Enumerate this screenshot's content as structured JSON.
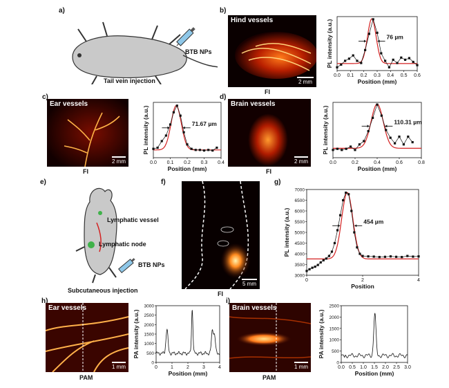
{
  "panels": {
    "a": {
      "label": "a)",
      "caption": "Tail vein injection",
      "agent": "BTB NPs"
    },
    "b": {
      "label": "b)",
      "image_title": "Hind vessels",
      "scale": "2 mm",
      "image_caption": "FI"
    },
    "c": {
      "label": "c)",
      "image_title": "Ear vessels",
      "scale": "2 mm",
      "image_caption": "FI"
    },
    "d": {
      "label": "d)",
      "image_title": "Brain vessels",
      "scale": "2 mm",
      "image_caption": "FI"
    },
    "e": {
      "label": "e)",
      "vessel": "Lymphatic vessel",
      "node": "Lymphatic node",
      "agent": "BTB NPs",
      "caption": "Subcutaneous injection"
    },
    "f": {
      "label": "f)",
      "scale": "5 mm",
      "image_caption": "FI"
    },
    "g": {
      "label": "g)"
    },
    "h": {
      "label": "h)",
      "image_title": "Ear vessels",
      "scale": "1 mm",
      "image_caption": "PAM"
    },
    "i": {
      "label": "i)",
      "image_title": "Brain vessels",
      "scale": "1 mm",
      "image_caption": "PAM"
    }
  },
  "colors": {
    "fit": "#d42020",
    "data": "#111111",
    "image_glow": "#ff8a1e"
  },
  "chart_data": [
    {
      "id": "b",
      "type": "scatter",
      "xlabel": "Position (mm)",
      "ylabel": "PL intensity (a.u.)",
      "xlim": [
        0,
        0.6
      ],
      "xticks": [
        "0.0",
        "0.1",
        "0.2",
        "0.3",
        "0.4",
        "0.5",
        "0.6"
      ],
      "ylim": [
        0,
        1
      ],
      "annotation": "76 µm",
      "x": [
        0.0,
        0.03,
        0.06,
        0.09,
        0.12,
        0.15,
        0.18,
        0.21,
        0.24,
        0.27,
        0.3,
        0.33,
        0.36,
        0.39,
        0.42,
        0.45,
        0.48,
        0.51,
        0.54,
        0.57,
        0.6
      ],
      "y": [
        0.06,
        0.11,
        0.18,
        0.22,
        0.28,
        0.18,
        0.14,
        0.38,
        0.68,
        0.95,
        0.7,
        0.32,
        0.18,
        0.06,
        0.2,
        0.14,
        0.24,
        0.2,
        0.23,
        0.16,
        0.1
      ],
      "fit": {
        "center": 0.26,
        "sigma": 0.032,
        "amp": 0.83,
        "base": 0.13
      }
    },
    {
      "id": "c",
      "type": "scatter",
      "xlabel": "Position (mm)",
      "ylabel": "PL intensity (a.u.)",
      "xlim": [
        0,
        0.4
      ],
      "xticks": [
        "0.0",
        "0.1",
        "0.2",
        "0.3",
        "0.4"
      ],
      "ylim": [
        0,
        1
      ],
      "annotation": "71.67 µm",
      "x": [
        0.0,
        0.025,
        0.05,
        0.075,
        0.1,
        0.12,
        0.14,
        0.16,
        0.18,
        0.2,
        0.225,
        0.25,
        0.275,
        0.3,
        0.325,
        0.35,
        0.375
      ],
      "y": [
        0.16,
        0.18,
        0.3,
        0.4,
        0.6,
        0.82,
        0.94,
        0.76,
        0.46,
        0.24,
        0.16,
        0.14,
        0.14,
        0.13,
        0.14,
        0.13,
        0.18
      ],
      "fit": {
        "center": 0.135,
        "sigma": 0.03,
        "amp": 0.8,
        "base": 0.14
      }
    },
    {
      "id": "d",
      "type": "scatter",
      "xlabel": "Position (mm)",
      "ylabel": "PL intensity (a.u.)",
      "xlim": [
        0,
        0.8
      ],
      "xticks": [
        "0.0",
        "0.2",
        "0.4",
        "0.6",
        "0.8"
      ],
      "ylim": [
        0,
        1
      ],
      "annotation": "110.31 µm",
      "x": [
        0.0,
        0.04,
        0.08,
        0.12,
        0.16,
        0.2,
        0.24,
        0.28,
        0.32,
        0.36,
        0.4,
        0.44,
        0.48,
        0.52,
        0.56,
        0.6,
        0.64,
        0.68,
        0.72
      ],
      "y": [
        0.14,
        0.16,
        0.14,
        0.16,
        0.2,
        0.14,
        0.24,
        0.3,
        0.48,
        0.72,
        0.96,
        0.76,
        0.5,
        0.36,
        0.26,
        0.38,
        0.24,
        0.38,
        0.28
      ],
      "fit": {
        "center": 0.4,
        "sigma": 0.055,
        "amp": 0.8,
        "base": 0.17
      }
    },
    {
      "id": "g",
      "type": "scatter",
      "xlabel": "Position",
      "ylabel": "PL intensity (a.u.)",
      "xlim": [
        0,
        4
      ],
      "xticks": [
        "0",
        "2",
        "4"
      ],
      "ylim": [
        3000,
        7000
      ],
      "yticks": [
        "3000",
        "3500",
        "4000",
        "4500",
        "5000",
        "5500",
        "6000",
        "6500",
        "7000"
      ],
      "annotation": "454 µm",
      "x": [
        0,
        0.1,
        0.2,
        0.3,
        0.4,
        0.5,
        0.6,
        0.7,
        0.8,
        0.9,
        1.0,
        1.1,
        1.2,
        1.3,
        1.4,
        1.5,
        1.6,
        1.7,
        1.8,
        1.9,
        2.0,
        2.2,
        2.4,
        2.6,
        2.8,
        3.0,
        3.2,
        3.4,
        3.6,
        3.8,
        4.0
      ],
      "y": [
        3200,
        3280,
        3350,
        3400,
        3480,
        3600,
        3700,
        3780,
        3900,
        4100,
        4500,
        5100,
        5800,
        6500,
        6850,
        6780,
        6000,
        5000,
        4300,
        4000,
        3900,
        3880,
        3870,
        3850,
        3860,
        3880,
        3860,
        3850,
        3900,
        3870,
        3880
      ],
      "fit": {
        "center": 1.45,
        "sigma": 0.2,
        "amp": 3100,
        "base": 3760
      }
    },
    {
      "id": "h",
      "type": "line",
      "xlabel": "Position (mm)",
      "ylabel": "PA intensity (a.u.)",
      "xlim": [
        0,
        4.4
      ],
      "xticks": [
        "0",
        "1",
        "2",
        "3",
        "4"
      ],
      "ylim": [
        0,
        3000
      ],
      "yticks": [
        "0",
        "500",
        "1000",
        "1500",
        "2000",
        "2500",
        "3000"
      ],
      "peaks": [
        {
          "x": 0.75,
          "h": 1750,
          "w": 0.07
        },
        {
          "x": 2.5,
          "h": 2800,
          "w": 0.05
        },
        {
          "x": 3.9,
          "h": 1700,
          "w": 0.07
        },
        {
          "x": 4.05,
          "h": 1350,
          "w": 0.06
        }
      ],
      "baseline": 480
    },
    {
      "id": "i",
      "type": "line",
      "xlabel": "Position (mm)",
      "ylabel": "PA intensity (a.u.)",
      "xlim": [
        0,
        3.0
      ],
      "xticks": [
        "0.0",
        "0.5",
        "1.0",
        "1.5",
        "2.0",
        "2.5",
        "3.0"
      ],
      "ylim": [
        0,
        2500
      ],
      "yticks": [
        "0",
        "500",
        "1000",
        "1500",
        "2000",
        "2500"
      ],
      "peaks": [
        {
          "x": 1.52,
          "h": 2150,
          "w": 0.05
        },
        {
          "x": 0.05,
          "h": 250,
          "w": 0.02
        },
        {
          "x": 0.15,
          "h": 200,
          "w": 0.02
        }
      ],
      "baseline": 300
    }
  ]
}
